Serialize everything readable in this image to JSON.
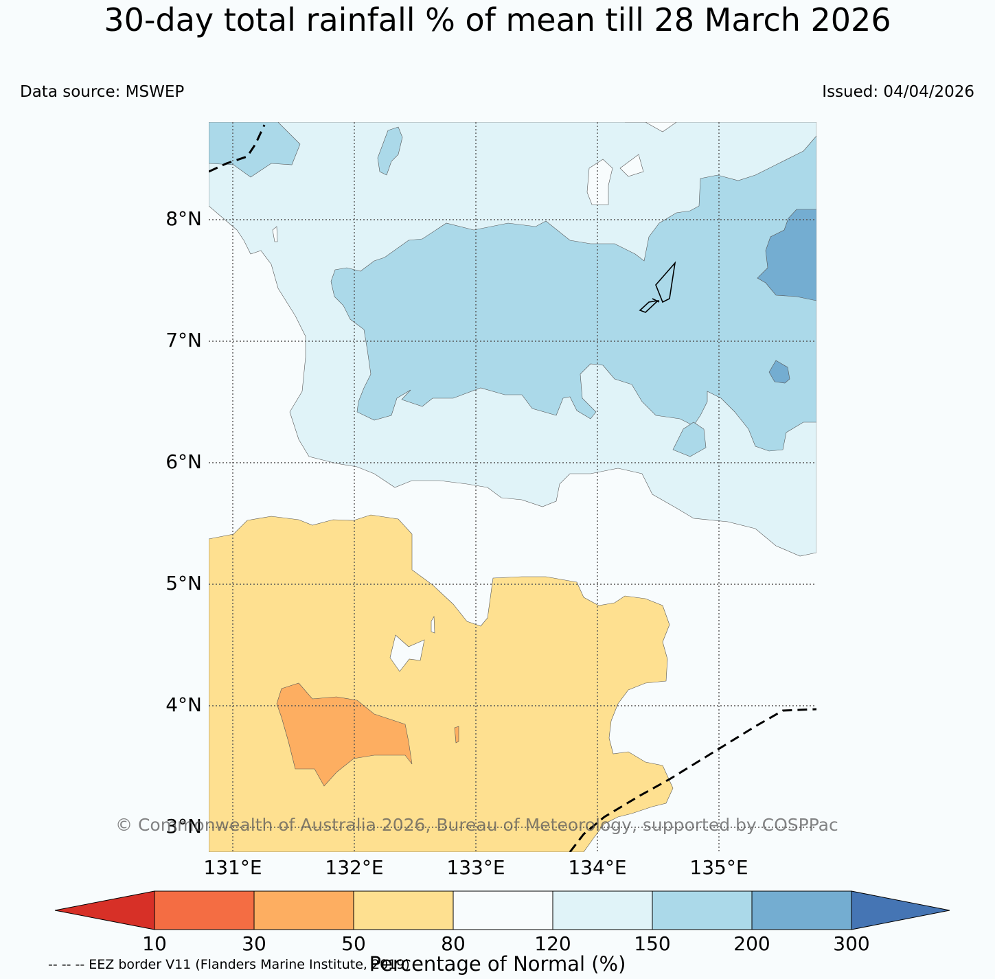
{
  "title": "30-day total rainfall % of mean till 28 March 2026",
  "data_source": "Data source: MSWEP",
  "issued": "Issued: 04/04/2026",
  "map": {
    "lat_labels": [
      "8°N",
      "7°N",
      "6°N",
      "5°N",
      "4°N",
      "3°N"
    ],
    "lon_labels": [
      "131°E",
      "132°E",
      "133°E",
      "134°E",
      "135°E"
    ],
    "copyright": "© Commonwealth of Australia 2026, Bureau of Meteorology, supported by COSPPac"
  },
  "colorbar": {
    "ticks": [
      "10",
      "30",
      "50",
      "80",
      "120",
      "150",
      "200",
      "300"
    ],
    "colors": [
      "#d73027",
      "#f46d43",
      "#fdae61",
      "#fee090",
      "#f8fcfd",
      "#e0f3f8",
      "#abd9e9",
      "#74add1",
      "#4575b4"
    ],
    "label": "Percentage of Normal (%)"
  },
  "legend": {
    "eez_note": "-- -- -- EEZ border V11 (Flanders Marine Institute, 2019)"
  }
}
